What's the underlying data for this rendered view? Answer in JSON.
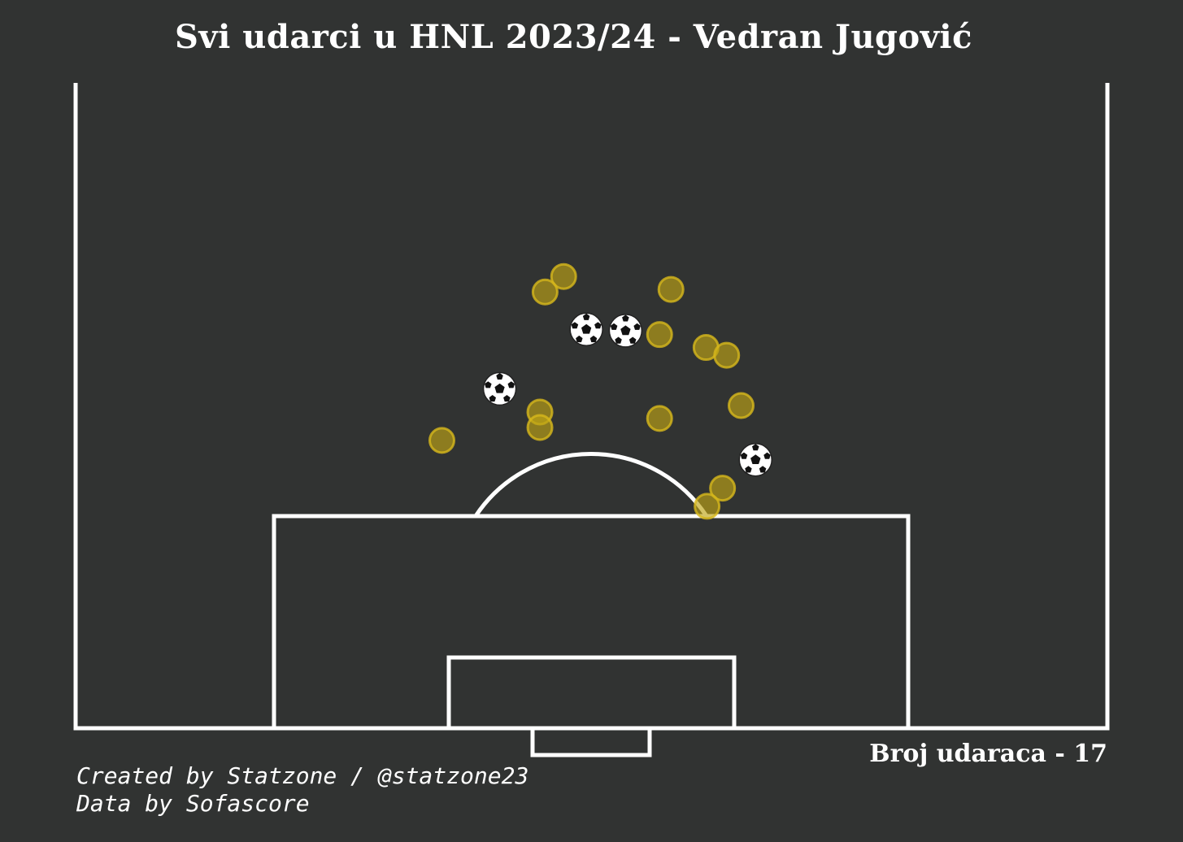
{
  "title": "Svi udarci u HNL 2023/24 - Vedran Jugović",
  "shot_count_label": "Broj udaraca - 17",
  "credits": {
    "line1": "Created by Statzone / @statzone23",
    "line2": "Data by Sofascore"
  },
  "colors": {
    "background": "#313332",
    "lines": "#ffffff",
    "shot": "#bfa416",
    "goal": "#ffffff"
  },
  "chart_data": {
    "type": "scatter",
    "title": "Svi udarci u HNL 2023/24 - Vedran Jugović",
    "pitch": "opta half-pitch, attacking upwards",
    "xlim": [
      0,
      100
    ],
    "ylim": [
      50,
      100
    ],
    "series": [
      {
        "name": "shot",
        "points": [
          [
            47.3,
            85.0
          ],
          [
            45.5,
            83.8
          ],
          [
            57.7,
            84.0
          ],
          [
            56.6,
            80.5
          ],
          [
            61.1,
            79.5
          ],
          [
            63.1,
            78.9
          ],
          [
            45.0,
            74.5
          ],
          [
            45.0,
            73.3
          ],
          [
            56.6,
            74.0
          ],
          [
            64.5,
            75.0
          ],
          [
            35.5,
            72.3
          ],
          [
            62.7,
            68.6
          ],
          [
            61.2,
            67.2
          ]
        ]
      },
      {
        "name": "goal",
        "points": [
          [
            49.5,
            80.9
          ],
          [
            53.3,
            80.8
          ],
          [
            41.1,
            76.3
          ],
          [
            65.9,
            70.8
          ]
        ]
      }
    ]
  }
}
